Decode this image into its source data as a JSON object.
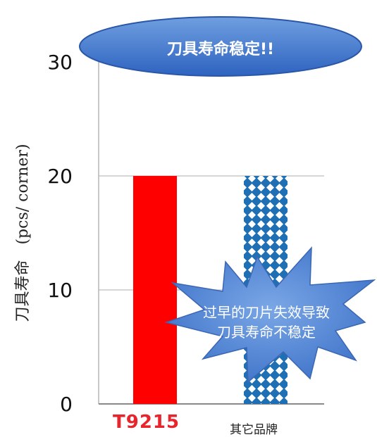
{
  "chart_data": {
    "type": "bar",
    "categories": [
      "T9215",
      "其它品牌"
    ],
    "values": [
      20,
      20
    ],
    "ylabel": "刀具寿命　(pcs/ corner)",
    "ylim": [
      0,
      30
    ],
    "yticks": [
      0,
      10,
      20,
      30
    ],
    "grid": true,
    "colors": {
      "T9215": "#ff0000",
      "其它品牌": "#1f6fb5"
    },
    "annotations": {
      "ellipse": "刀具寿命稳定!!",
      "burst_line1": "过早的刀片失效导致",
      "burst_line2": "刀具寿命不稳定"
    }
  }
}
